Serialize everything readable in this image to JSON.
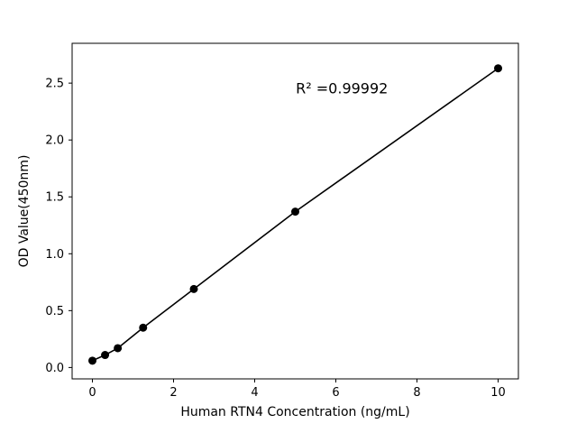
{
  "figure": {
    "background": "#ffffff"
  },
  "chart_data": {
    "type": "scatter",
    "title": "",
    "xlabel": "Human RTN4 Concentration (ng/mL)",
    "ylabel": "OD Value(450nm)",
    "x": [
      0,
      0.3125,
      0.625,
      1.25,
      2.5,
      5,
      10
    ],
    "y": [
      0.06,
      0.11,
      0.17,
      0.35,
      0.69,
      1.37,
      2.63
    ],
    "xlim": [
      -0.5,
      10.5
    ],
    "ylim": [
      -0.1,
      2.85
    ],
    "xticks": [
      0,
      2,
      4,
      6,
      8,
      10
    ],
    "yticks": [
      0.0,
      0.5,
      1.0,
      1.5,
      2.0,
      2.5
    ],
    "grid": false,
    "legend": null,
    "line": true,
    "line_color": "#000000",
    "marker_color": "#000000",
    "annotation": {
      "text": "R² =0.99992",
      "x": 6.15,
      "y": 2.41
    }
  }
}
